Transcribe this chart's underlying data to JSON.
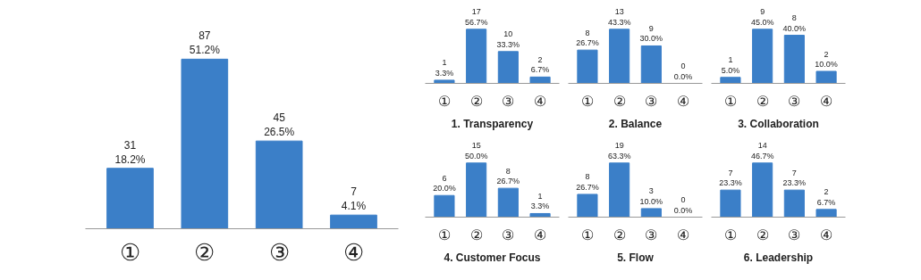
{
  "chart_data": [
    {
      "type": "bar",
      "categories": [
        "①",
        "②",
        "③",
        "④"
      ],
      "values": [
        31,
        87,
        45,
        7
      ],
      "value_labels": [
        "31\n18.2%",
        "87\n51.2%",
        "45\n26.5%",
        "7\n4.1%"
      ],
      "color": "#3b7fc8"
    },
    {
      "type": "bar",
      "title": "1. Transparency",
      "categories": [
        "①",
        "②",
        "③",
        "④"
      ],
      "values": [
        1,
        17,
        10,
        2
      ],
      "value_labels": [
        "1\n3.3%",
        "17\n56.7%",
        "10\n33.3%",
        "2\n6.7%"
      ],
      "color": "#3b7fc8"
    },
    {
      "type": "bar",
      "title": "2. Balance",
      "categories": [
        "①",
        "②",
        "③",
        "④"
      ],
      "values": [
        8,
        13,
        9,
        0
      ],
      "value_labels": [
        "8\n26.7%",
        "13\n43.3%",
        "9\n30.0%",
        "0\n0.0%"
      ],
      "color": "#3b7fc8"
    },
    {
      "type": "bar",
      "title": "3. Collaboration",
      "categories": [
        "①",
        "②",
        "③",
        "④"
      ],
      "values": [
        1,
        9,
        8,
        2
      ],
      "value_labels": [
        "1\n5.0%",
        "9\n45.0%",
        "8\n40.0%",
        "2\n10.0%"
      ],
      "color": "#3b7fc8"
    },
    {
      "type": "bar",
      "title": "4. Customer Focus",
      "categories": [
        "①",
        "②",
        "③",
        "④"
      ],
      "values": [
        6,
        15,
        8,
        1
      ],
      "value_labels": [
        "6\n20.0%",
        "15\n50.0%",
        "8\n26.7%",
        "1\n3.3%"
      ],
      "color": "#3b7fc8"
    },
    {
      "type": "bar",
      "title": "5. Flow",
      "categories": [
        "①",
        "②",
        "③",
        "④"
      ],
      "values": [
        8,
        19,
        3,
        0
      ],
      "value_labels": [
        "8\n26.7%",
        "19\n63.3%",
        "3\n10.0%",
        "0\n0.0%"
      ],
      "color": "#3b7fc8"
    },
    {
      "type": "bar",
      "title": "6. Leadership",
      "categories": [
        "①",
        "②",
        "③",
        "④"
      ],
      "values": [
        7,
        14,
        7,
        2
      ],
      "value_labels": [
        "7\n23.3%",
        "14\n46.7%",
        "7\n23.3%",
        "2\n6.7%"
      ],
      "color": "#3b7fc8"
    }
  ]
}
